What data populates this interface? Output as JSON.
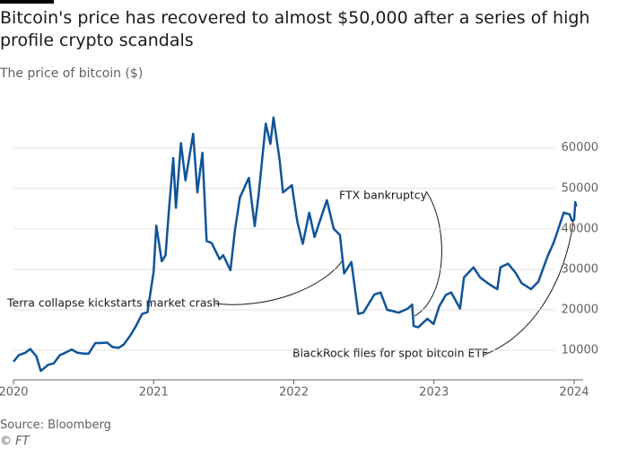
{
  "chart_data": {
    "type": "line",
    "title": "Bitcoin's price has recovered to almost $50,000 after a series of high profile crypto scandals",
    "subtitle": "The price of bitcoin ($)",
    "source": "Source: Bloomberg",
    "credit": "© FT",
    "annotations": [
      {
        "text": "FTX bankruptcy"
      },
      {
        "text": "Terra collapse kickstarts market crash"
      },
      {
        "text": "BlackRock files for spot bitcoin ETF"
      }
    ],
    "grid": true,
    "xlim": [
      2020,
      2024.02
    ],
    "xticks": [
      2020,
      2021,
      2022,
      2023,
      2024
    ],
    "ylim": [
      2700,
      67700
    ],
    "yticks": [
      10000,
      20000,
      30000,
      40000,
      50000,
      60000
    ],
    "series": [
      {
        "color": "#0f5499",
        "x": [
          2020.0,
          2020.038,
          2020.085,
          2020.12,
          2020.164,
          2020.195,
          2020.247,
          2020.288,
          2020.331,
          2020.37,
          2020.416,
          2020.455,
          2020.499,
          2020.537,
          2020.584,
          2020.622,
          2020.668,
          2020.707,
          2020.751,
          2020.789,
          2020.836,
          2020.874,
          2020.918,
          2020.956,
          2021.0,
          2021.019,
          2021.058,
          2021.085,
          2021.11,
          2021.14,
          2021.159,
          2021.195,
          2021.227,
          2021.282,
          2021.312,
          2021.348,
          2021.378,
          2021.414,
          2021.471,
          2021.496,
          2021.548,
          2021.581,
          2021.616,
          2021.679,
          2021.721,
          2021.748,
          2021.8,
          2021.833,
          2021.855,
          2021.899,
          2021.923,
          2021.986,
          2022.025,
          2022.064,
          2022.11,
          2022.148,
          2022.236,
          2022.285,
          2022.329,
          2022.359,
          2022.411,
          2022.46,
          2022.496,
          2022.575,
          2022.619,
          2022.666,
          2022.704,
          2022.748,
          2022.814,
          2022.844,
          2022.855,
          2022.888,
          2022.953,
          2022.997,
          2023.038,
          2023.085,
          2023.123,
          2023.186,
          2023.214,
          2023.282,
          2023.329,
          2023.395,
          2023.452,
          2023.474,
          2023.529,
          2023.581,
          2023.625,
          2023.693,
          2023.745,
          2023.808,
          2023.855,
          2023.926,
          2023.967,
          2023.985,
          2024.0,
          2024.008,
          2024.015
        ],
        "values": [
          7200,
          8800,
          9400,
          10300,
          8500,
          4900,
          6400,
          6800,
          8800,
          9400,
          10200,
          9400,
          9200,
          9200,
          11800,
          11800,
          11900,
          10800,
          10600,
          11500,
          13800,
          16000,
          19000,
          19400,
          29400,
          40800,
          32000,
          33500,
          45000,
          57500,
          45200,
          61200,
          52000,
          63500,
          49000,
          58800,
          37000,
          36500,
          32500,
          33500,
          29800,
          39900,
          47800,
          52600,
          40700,
          48100,
          66000,
          61000,
          67500,
          57000,
          49000,
          50800,
          41800,
          36300,
          44000,
          38000,
          47100,
          40000,
          38500,
          29000,
          31800,
          19000,
          19300,
          23800,
          24300,
          20000,
          19700,
          19300,
          20300,
          21300,
          16000,
          15700,
          17800,
          16500,
          20900,
          23700,
          24300,
          20300,
          28000,
          30500,
          28000,
          26300,
          25100,
          30500,
          31400,
          29200,
          26600,
          25100,
          27000,
          33000,
          36700,
          44000,
          43600,
          42000,
          42300,
          46600,
          45500
        ]
      }
    ]
  }
}
